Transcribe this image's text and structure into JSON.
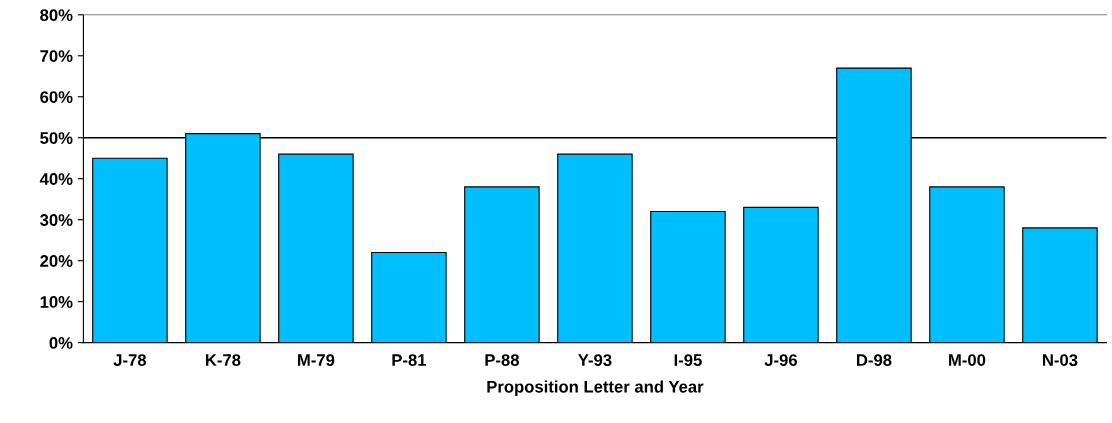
{
  "chart_data": {
    "type": "bar",
    "xlabel": "Proposition Letter and Year",
    "categories": [
      "J-78",
      "K-78",
      "M-79",
      "P-81",
      "P-88",
      "Y-93",
      "I-95",
      "J-96",
      "D-98",
      "M-00",
      "N-03"
    ],
    "values": [
      45,
      51,
      46,
      22,
      38,
      46,
      32,
      33,
      67,
      38,
      28
    ],
    "color": "#00bfff",
    "ylim": [
      0,
      80
    ],
    "yticks": [
      {
        "value": 0,
        "label": "0%"
      },
      {
        "value": 10,
        "label": "10%"
      },
      {
        "value": 20,
        "label": "20%"
      },
      {
        "value": 30,
        "label": "30%"
      },
      {
        "value": 40,
        "label": "40%"
      },
      {
        "value": 50,
        "label": "50%"
      },
      {
        "value": 60,
        "label": "60%"
      },
      {
        "value": 70,
        "label": "70%"
      },
      {
        "value": 80,
        "label": "80%"
      }
    ],
    "ref_lines": [
      {
        "axis": "y",
        "value": 50,
        "color": "#000000"
      }
    ],
    "grid": false
  }
}
